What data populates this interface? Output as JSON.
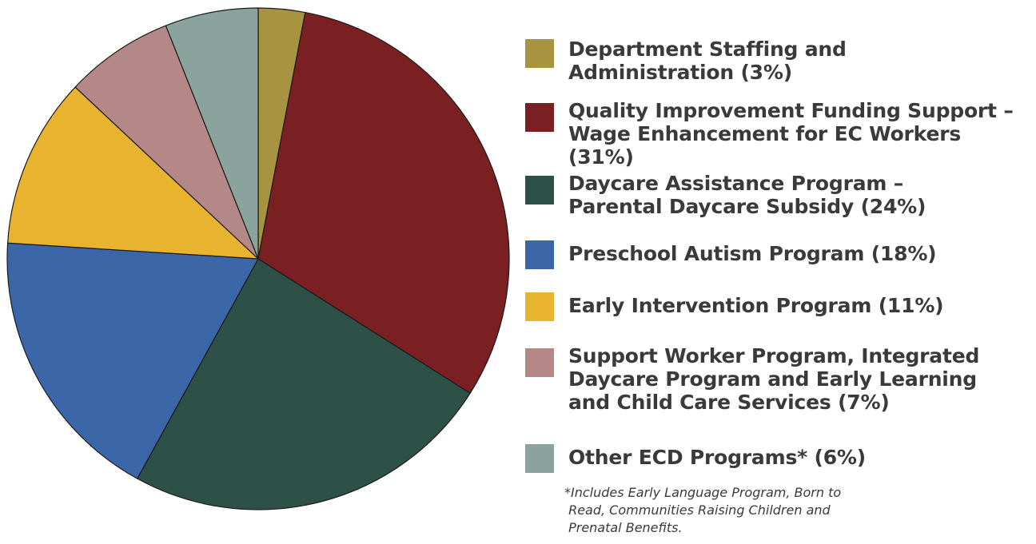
{
  "chart_data": {
    "type": "pie",
    "title": "",
    "start_angle": "12 o'clock",
    "direction": "clockwise",
    "slices": [
      {
        "label": "Department Staffing and Administration (3%)",
        "value": 3,
        "color": "#a89440"
      },
      {
        "label": "Quality Improvement Funding Support – Wage Enhancement for EC Workers (31%)",
        "value": 31,
        "color": "#7a1f22"
      },
      {
        "label": "Daycare Assistance Program – Parental Daycare Subsidy (24%)",
        "value": 24,
        "color": "#2d5147"
      },
      {
        "label": "Preschool Autism Program (18%)",
        "value": 18,
        "color": "#3b67a8"
      },
      {
        "label": "Early Intervention Program (11%)",
        "value": 11,
        "color": "#e8b430"
      },
      {
        "label": "Support Worker Program, Integrated Daycare Program and Early Learning and Child Care Services (7%)",
        "value": 7,
        "color": "#b58888"
      },
      {
        "label": "Other ECD Programs* (6%)",
        "value": 6,
        "color": "#8aa39c"
      }
    ],
    "legend_position": "right",
    "footnote": "*Includes Early Language Program, Born to Read, Communities Raising Children and Prenatal Benefits."
  },
  "legend": {
    "items": [
      {
        "lines": [
          "Department Staffing and",
          "Administration (3%)"
        ]
      },
      {
        "lines": [
          "Quality Improvement Funding Support –",
          "Wage Enhancement for EC Workers (31%)"
        ]
      },
      {
        "lines": [
          "Daycare Assistance Program –",
          "Parental Daycare Subsidy (24%)"
        ]
      },
      {
        "lines": [
          "Preschool Autism Program (18%)"
        ]
      },
      {
        "lines": [
          "Early Intervention Program (11%)"
        ]
      },
      {
        "lines": [
          "Support Worker Program, Integrated",
          "Daycare Program and Early Learning",
          "and Child Care Services (7%)"
        ]
      },
      {
        "lines": [
          "Other ECD Programs* (6%)"
        ]
      }
    ]
  },
  "footnote": {
    "lines": [
      "*Includes Early Language Program, Born to",
      " Read, Communities Raising Children and",
      " Prenatal Benefits."
    ]
  }
}
